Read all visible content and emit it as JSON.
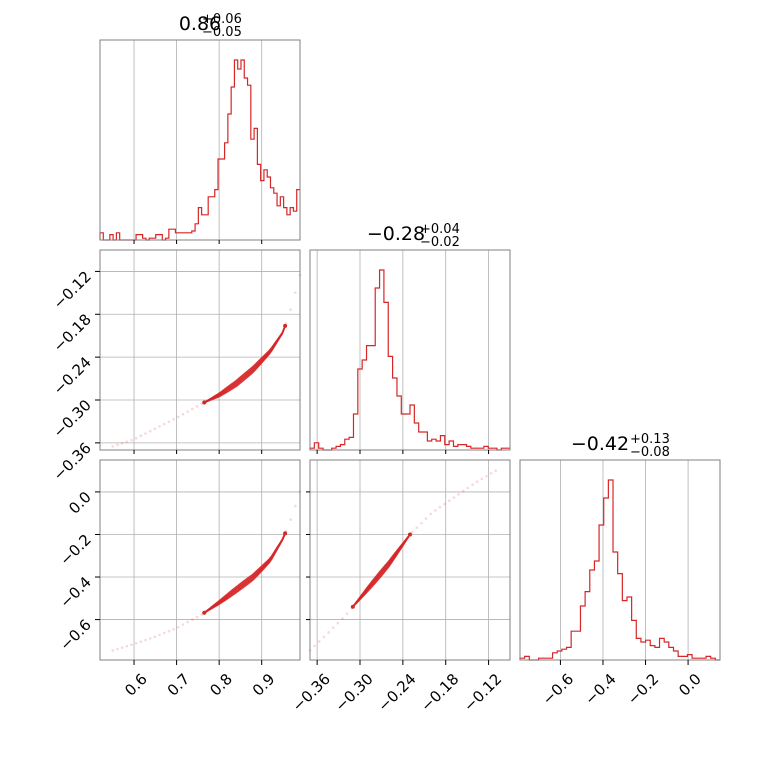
{
  "chart_data": {
    "type": "corner",
    "color": "#d62728",
    "parameters": [
      {
        "title": {
          "value": "0.86",
          "plus": "+0.06",
          "minus": "−0.05"
        },
        "range": [
          0.52,
          0.99
        ],
        "ticks": [
          0.6,
          0.7,
          0.8,
          0.9
        ],
        "tick_labels": [
          "0.6",
          "0.7",
          "0.8",
          "0.9"
        ],
        "hist": [
          0.04,
          0,
          0,
          0.03,
          0,
          0.04,
          0,
          0,
          0,
          0,
          0,
          0.03,
          0.03,
          0.01,
          0,
          0.01,
          0.01,
          0.03,
          0.03,
          0,
          0.01,
          0.06,
          0.06,
          0.04,
          0.04,
          0.04,
          0.04,
          0.04,
          0.05,
          0.09,
          0.18,
          0.14,
          0.14,
          0.24,
          0.24,
          0.28,
          0.45,
          0.45,
          0.54,
          0.7,
          0.85,
          1.0,
          0.95,
          1.0,
          0.9,
          0.86,
          0.56,
          0.62,
          0.42,
          0.33,
          0.39,
          0.35,
          0.29,
          0.26,
          0.19,
          0.24,
          0.18,
          0.14,
          0.18,
          0.16,
          0.28
        ]
      },
      {
        "title": {
          "value": "−0.28",
          "plus": "+0.04",
          "minus": "−0.02"
        },
        "range": [
          -0.37,
          -0.09
        ],
        "ticks": [
          -0.36,
          -0.3,
          -0.24,
          -0.18,
          -0.12
        ],
        "tick_labels": [
          "−0.36",
          "−0.30",
          "−0.24",
          "−0.18",
          "−0.12"
        ],
        "hist": [
          0.01,
          0.04,
          0.01,
          0,
          0,
          0.01,
          0.02,
          0.03,
          0.06,
          0.07,
          0.2,
          0.45,
          0.5,
          0.58,
          0.58,
          0.9,
          1.0,
          0.82,
          0.52,
          0.4,
          0.3,
          0.2,
          0.2,
          0.25,
          0.15,
          0.1,
          0.1,
          0.05,
          0.06,
          0.05,
          0.08,
          0.03,
          0.05,
          0.02,
          0.03,
          0.03,
          0.02,
          0.01,
          0.01,
          0.01,
          0.02,
          0.01,
          0.01,
          0,
          0.01,
          0.01
        ]
      },
      {
        "title": {
          "value": "−0.42",
          "plus": "+0.13",
          "minus": "−0.08"
        },
        "range": [
          -0.79,
          0.15
        ],
        "ticks": [
          -0.6,
          -0.4,
          -0.2,
          0.0
        ],
        "tick_labels": [
          "−0.6",
          "−0.4",
          "−0.2",
          "0.0"
        ],
        "hist": [
          0.01,
          0.02,
          0,
          0,
          0.01,
          0.01,
          0.01,
          0.04,
          0.05,
          0.06,
          0.07,
          0.16,
          0.16,
          0.3,
          0.38,
          0.5,
          0.55,
          0.75,
          0.9,
          1.0,
          0.6,
          0.48,
          0.33,
          0.35,
          0.22,
          0.12,
          0.1,
          0.11,
          0.08,
          0.07,
          0.12,
          0.1,
          0.07,
          0.05,
          0.02,
          0.02,
          0.03,
          0.01,
          0.01,
          0.01,
          0.02,
          0.01,
          0
        ]
      }
    ],
    "relations": {
      "p1_vs_p0": [
        [
          0.55,
          -0.365
        ],
        [
          0.6,
          -0.355
        ],
        [
          0.65,
          -0.34
        ],
        [
          0.7,
          -0.325
        ],
        [
          0.76,
          -0.305
        ],
        [
          0.8,
          -0.293
        ],
        [
          0.84,
          -0.277
        ],
        [
          0.88,
          -0.257
        ],
        [
          0.92,
          -0.232
        ],
        [
          0.95,
          -0.205
        ],
        [
          0.97,
          -0.17
        ],
        [
          0.99,
          -0.125
        ]
      ],
      "p2_vs_p0": [
        [
          0.55,
          -0.745
        ],
        [
          0.6,
          -0.715
        ],
        [
          0.65,
          -0.68
        ],
        [
          0.7,
          -0.64
        ],
        [
          0.76,
          -0.575
        ],
        [
          0.8,
          -0.52
        ],
        [
          0.84,
          -0.46
        ],
        [
          0.88,
          -0.4
        ],
        [
          0.92,
          -0.32
        ],
        [
          0.95,
          -0.22
        ],
        [
          0.97,
          -0.12
        ],
        [
          0.99,
          0.0
        ]
      ],
      "p2_vs_p1": [
        [
          -0.37,
          -0.745
        ],
        [
          -0.35,
          -0.68
        ],
        [
          -0.32,
          -0.58
        ],
        [
          -0.29,
          -0.46
        ],
        [
          -0.26,
          -0.34
        ],
        [
          -0.23,
          -0.2
        ],
        [
          -0.2,
          -0.1
        ],
        [
          -0.17,
          -0.03
        ],
        [
          -0.14,
          0.04
        ],
        [
          -0.11,
          0.1
        ]
      ]
    },
    "contour_extent": {
      "p1_vs_p0": [
        0.765,
        0.955
      ],
      "p2_vs_p0": [
        0.765,
        0.955
      ],
      "p2_vs_p1": [
        -0.31,
        -0.23
      ]
    },
    "grid": true
  }
}
